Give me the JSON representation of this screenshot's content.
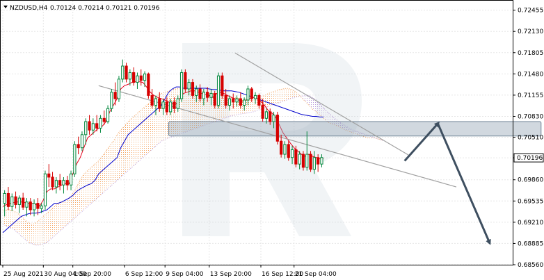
{
  "header": {
    "symbol": "NZDUSD,H4",
    "ohlc": "0.70124 0.70214 0.70121 0.70196"
  },
  "chart_data": {
    "type": "candlestick",
    "price_axis": {
      "ticks": [
        "0.72455",
        "0.72130",
        "0.71805",
        "0.71480",
        "0.71155",
        "0.70830",
        "0.70510",
        "0.70196",
        "0.69860",
        "0.69535",
        "0.69210",
        "0.68885",
        "0.68560"
      ],
      "current_price_label": "0.70196",
      "ylim": [
        0.6856,
        0.726
      ]
    },
    "time_axis": {
      "labels": [
        "25 Aug 2021",
        "30 Aug 04:00",
        "1 Sep 20:00",
        "6 Sep 12:00",
        "9 Sep 04:00",
        "13 Sep 20:00",
        "16 Sep 12:00",
        "21 Sep 04:00"
      ]
    },
    "candles": [
      {
        "o": 0.695,
        "h": 0.697,
        "l": 0.693,
        "c": 0.6965
      },
      {
        "o": 0.6965,
        "h": 0.6975,
        "l": 0.694,
        "c": 0.6945
      },
      {
        "o": 0.6945,
        "h": 0.6965,
        "l": 0.6938,
        "c": 0.696
      },
      {
        "o": 0.696,
        "h": 0.6968,
        "l": 0.6942,
        "c": 0.6948
      },
      {
        "o": 0.6948,
        "h": 0.6962,
        "l": 0.6935,
        "c": 0.6958
      },
      {
        "o": 0.6958,
        "h": 0.6966,
        "l": 0.694,
        "c": 0.6944
      },
      {
        "o": 0.6944,
        "h": 0.6958,
        "l": 0.693,
        "c": 0.6952
      },
      {
        "o": 0.6952,
        "h": 0.6958,
        "l": 0.6932,
        "c": 0.694
      },
      {
        "o": 0.694,
        "h": 0.6956,
        "l": 0.693,
        "c": 0.695
      },
      {
        "o": 0.695,
        "h": 0.6958,
        "l": 0.6932,
        "c": 0.6942
      },
      {
        "o": 0.6942,
        "h": 0.695,
        "l": 0.6935,
        "c": 0.6946
      },
      {
        "o": 0.6946,
        "h": 0.7,
        "l": 0.694,
        "c": 0.6995
      },
      {
        "o": 0.6995,
        "h": 0.701,
        "l": 0.6975,
        "c": 0.699
      },
      {
        "o": 0.699,
        "h": 0.6998,
        "l": 0.697,
        "c": 0.6975
      },
      {
        "o": 0.6975,
        "h": 0.699,
        "l": 0.6965,
        "c": 0.6985
      },
      {
        "o": 0.6985,
        "h": 0.6995,
        "l": 0.697,
        "c": 0.6978
      },
      {
        "o": 0.6978,
        "h": 0.699,
        "l": 0.6965,
        "c": 0.6985
      },
      {
        "o": 0.6985,
        "h": 0.6992,
        "l": 0.697,
        "c": 0.6978
      },
      {
        "o": 0.6978,
        "h": 0.7,
        "l": 0.697,
        "c": 0.6995
      },
      {
        "o": 0.6995,
        "h": 0.7045,
        "l": 0.699,
        "c": 0.704
      },
      {
        "o": 0.704,
        "h": 0.7052,
        "l": 0.7025,
        "c": 0.7035
      },
      {
        "o": 0.7035,
        "h": 0.706,
        "l": 0.703,
        "c": 0.7055
      },
      {
        "o": 0.7055,
        "h": 0.708,
        "l": 0.704,
        "c": 0.7075
      },
      {
        "o": 0.7075,
        "h": 0.7085,
        "l": 0.7055,
        "c": 0.7062
      },
      {
        "o": 0.7062,
        "h": 0.708,
        "l": 0.7055,
        "c": 0.7072
      },
      {
        "o": 0.7072,
        "h": 0.7085,
        "l": 0.706,
        "c": 0.7065
      },
      {
        "o": 0.7065,
        "h": 0.7085,
        "l": 0.7058,
        "c": 0.708
      },
      {
        "o": 0.708,
        "h": 0.7092,
        "l": 0.707,
        "c": 0.7075
      },
      {
        "o": 0.7075,
        "h": 0.71,
        "l": 0.7072,
        "c": 0.7095
      },
      {
        "o": 0.7095,
        "h": 0.7125,
        "l": 0.709,
        "c": 0.712
      },
      {
        "o": 0.712,
        "h": 0.7135,
        "l": 0.71,
        "c": 0.711
      },
      {
        "o": 0.711,
        "h": 0.7145,
        "l": 0.7105,
        "c": 0.714
      },
      {
        "o": 0.714,
        "h": 0.717,
        "l": 0.7135,
        "c": 0.716
      },
      {
        "o": 0.716,
        "h": 0.7165,
        "l": 0.7135,
        "c": 0.714
      },
      {
        "o": 0.714,
        "h": 0.7155,
        "l": 0.713,
        "c": 0.715
      },
      {
        "o": 0.715,
        "h": 0.7158,
        "l": 0.713,
        "c": 0.7135
      },
      {
        "o": 0.7135,
        "h": 0.715,
        "l": 0.7125,
        "c": 0.7145
      },
      {
        "o": 0.7145,
        "h": 0.7155,
        "l": 0.713,
        "c": 0.7138
      },
      {
        "o": 0.7138,
        "h": 0.7152,
        "l": 0.7128,
        "c": 0.7148
      },
      {
        "o": 0.7148,
        "h": 0.715,
        "l": 0.711,
        "c": 0.7115
      },
      {
        "o": 0.7115,
        "h": 0.7125,
        "l": 0.7095,
        "c": 0.71
      },
      {
        "o": 0.71,
        "h": 0.7115,
        "l": 0.7085,
        "c": 0.711
      },
      {
        "o": 0.711,
        "h": 0.712,
        "l": 0.709,
        "c": 0.7095
      },
      {
        "o": 0.7095,
        "h": 0.711,
        "l": 0.7085,
        "c": 0.7105
      },
      {
        "o": 0.7105,
        "h": 0.7112,
        "l": 0.7085,
        "c": 0.709
      },
      {
        "o": 0.709,
        "h": 0.711,
        "l": 0.7085,
        "c": 0.7105
      },
      {
        "o": 0.7105,
        "h": 0.7112,
        "l": 0.7088,
        "c": 0.7095
      },
      {
        "o": 0.7095,
        "h": 0.7115,
        "l": 0.709,
        "c": 0.711
      },
      {
        "o": 0.711,
        "h": 0.7155,
        "l": 0.7105,
        "c": 0.715
      },
      {
        "o": 0.715,
        "h": 0.7155,
        "l": 0.712,
        "c": 0.7125
      },
      {
        "o": 0.7125,
        "h": 0.714,
        "l": 0.7115,
        "c": 0.7135
      },
      {
        "o": 0.7135,
        "h": 0.714,
        "l": 0.711,
        "c": 0.7115
      },
      {
        "o": 0.7115,
        "h": 0.713,
        "l": 0.7105,
        "c": 0.7125
      },
      {
        "o": 0.7125,
        "h": 0.7132,
        "l": 0.7105,
        "c": 0.711
      },
      {
        "o": 0.711,
        "h": 0.7125,
        "l": 0.71,
        "c": 0.712
      },
      {
        "o": 0.712,
        "h": 0.7128,
        "l": 0.7105,
        "c": 0.7112
      },
      {
        "o": 0.7112,
        "h": 0.7125,
        "l": 0.71,
        "c": 0.7118
      },
      {
        "o": 0.7118,
        "h": 0.7122,
        "l": 0.7095,
        "c": 0.71
      },
      {
        "o": 0.71,
        "h": 0.715,
        "l": 0.7095,
        "c": 0.7145
      },
      {
        "o": 0.7145,
        "h": 0.715,
        "l": 0.711,
        "c": 0.7115
      },
      {
        "o": 0.7115,
        "h": 0.7125,
        "l": 0.7095,
        "c": 0.71
      },
      {
        "o": 0.71,
        "h": 0.7115,
        "l": 0.7092,
        "c": 0.711
      },
      {
        "o": 0.711,
        "h": 0.7118,
        "l": 0.7095,
        "c": 0.7105
      },
      {
        "o": 0.7105,
        "h": 0.7115,
        "l": 0.7098,
        "c": 0.711
      },
      {
        "o": 0.711,
        "h": 0.712,
        "l": 0.7095,
        "c": 0.71
      },
      {
        "o": 0.71,
        "h": 0.7112,
        "l": 0.7092,
        "c": 0.7108
      },
      {
        "o": 0.7108,
        "h": 0.713,
        "l": 0.71,
        "c": 0.7125
      },
      {
        "o": 0.7125,
        "h": 0.7128,
        "l": 0.7105,
        "c": 0.711
      },
      {
        "o": 0.711,
        "h": 0.712,
        "l": 0.7102,
        "c": 0.7115
      },
      {
        "o": 0.7115,
        "h": 0.7118,
        "l": 0.7095,
        "c": 0.71
      },
      {
        "o": 0.71,
        "h": 0.711,
        "l": 0.7075,
        "c": 0.708
      },
      {
        "o": 0.708,
        "h": 0.7095,
        "l": 0.7072,
        "c": 0.709
      },
      {
        "o": 0.709,
        "h": 0.7095,
        "l": 0.707,
        "c": 0.7075
      },
      {
        "o": 0.7075,
        "h": 0.709,
        "l": 0.7065,
        "c": 0.7085
      },
      {
        "o": 0.7085,
        "h": 0.709,
        "l": 0.704,
        "c": 0.7045
      },
      {
        "o": 0.7045,
        "h": 0.7055,
        "l": 0.702,
        "c": 0.7025
      },
      {
        "o": 0.7025,
        "h": 0.7045,
        "l": 0.7018,
        "c": 0.704
      },
      {
        "o": 0.704,
        "h": 0.7045,
        "l": 0.7015,
        "c": 0.702
      },
      {
        "o": 0.702,
        "h": 0.7038,
        "l": 0.701,
        "c": 0.7032
      },
      {
        "o": 0.7032,
        "h": 0.7038,
        "l": 0.7005,
        "c": 0.701
      },
      {
        "o": 0.701,
        "h": 0.703,
        "l": 0.7002,
        "c": 0.7025
      },
      {
        "o": 0.7025,
        "h": 0.703,
        "l": 0.7,
        "c": 0.7005
      },
      {
        "o": 0.7005,
        "h": 0.706,
        "l": 0.7,
        "c": 0.7025
      },
      {
        "o": 0.7025,
        "h": 0.703,
        "l": 0.6998,
        "c": 0.7002
      },
      {
        "o": 0.7002,
        "h": 0.703,
        "l": 0.6995,
        "c": 0.702
      },
      {
        "o": 0.702,
        "h": 0.7025,
        "l": 0.6998,
        "c": 0.701
      },
      {
        "o": 0.701,
        "h": 0.7025,
        "l": 0.7005,
        "c": 0.702
      }
    ],
    "tenkan": [
      0.6945,
      0.6948,
      0.695,
      0.6951,
      0.6952,
      0.6952,
      0.6951,
      0.695,
      0.695,
      0.6948,
      0.6946,
      0.6955,
      0.6968,
      0.6972,
      0.6972,
      0.6975,
      0.6978,
      0.698,
      0.698,
      0.6995,
      0.701,
      0.702,
      0.7035,
      0.705,
      0.7055,
      0.706,
      0.7065,
      0.7068,
      0.7075,
      0.709,
      0.71,
      0.711,
      0.7125,
      0.713,
      0.7132,
      0.7135,
      0.7136,
      0.7136,
      0.7135,
      0.7128,
      0.712,
      0.7115,
      0.7112,
      0.711,
      0.7108,
      0.7105,
      0.7102,
      0.7102,
      0.711,
      0.7118,
      0.712,
      0.7122,
      0.7122,
      0.712,
      0.7118,
      0.7116,
      0.7115,
      0.7112,
      0.7118,
      0.712,
      0.7118,
      0.7115,
      0.7112,
      0.711,
      0.7108,
      0.7106,
      0.7108,
      0.711,
      0.7112,
      0.711,
      0.7106,
      0.71,
      0.7092,
      0.7088,
      0.7082,
      0.707,
      0.7058,
      0.705,
      0.7042,
      0.7035,
      0.703,
      0.7025,
      0.7022,
      0.7025,
      0.7022,
      0.702,
      0.7018,
      0.7018
    ],
    "kijun": [
      0.6905,
      0.691,
      0.6915,
      0.692,
      0.6925,
      0.693,
      0.6932,
      0.6934,
      0.6935,
      0.6935,
      0.6936,
      0.6938,
      0.694,
      0.6945,
      0.695,
      0.695,
      0.6952,
      0.6955,
      0.6958,
      0.6962,
      0.6968,
      0.6972,
      0.6975,
      0.6978,
      0.698,
      0.6985,
      0.6995,
      0.7,
      0.7005,
      0.701,
      0.7015,
      0.702,
      0.7035,
      0.7045,
      0.7055,
      0.706,
      0.7065,
      0.707,
      0.7075,
      0.708,
      0.7085,
      0.709,
      0.7095,
      0.71,
      0.711,
      0.712,
      0.7125,
      0.7128,
      0.7128,
      0.7126,
      0.7126,
      0.7126,
      0.7126,
      0.7126,
      0.7126,
      0.7126,
      0.7125,
      0.7124,
      0.7124,
      0.7123,
      0.7122,
      0.7122,
      0.7122,
      0.7121,
      0.712,
      0.7118,
      0.7116,
      0.7114,
      0.7112,
      0.711,
      0.7108,
      0.7106,
      0.7104,
      0.7102,
      0.71,
      0.7098,
      0.7096,
      0.7094,
      0.7092,
      0.709,
      0.7088,
      0.7086,
      0.7085,
      0.7084,
      0.7083,
      0.7083,
      0.7082,
      0.7082
    ],
    "cloud": {
      "span_a": [
        0.6938,
        0.694,
        0.694,
        0.6938,
        0.6935,
        0.693,
        0.6925,
        0.692,
        0.6918,
        0.692,
        0.6925,
        0.693,
        0.6935,
        0.694,
        0.6945,
        0.695,
        0.6952,
        0.6955,
        0.6958,
        0.6965,
        0.6975,
        0.6985,
        0.6995,
        0.7,
        0.7005,
        0.701,
        0.7015,
        0.7022,
        0.703,
        0.7038,
        0.7045,
        0.7055,
        0.7062,
        0.7068,
        0.7075,
        0.708,
        0.7085,
        0.709,
        0.7095,
        0.71,
        0.7105,
        0.711,
        0.7115,
        0.7118,
        0.712,
        0.7122,
        0.7124,
        0.7125,
        0.7126,
        0.7126,
        0.7125,
        0.7124,
        0.7123,
        0.7122,
        0.7121,
        0.712,
        0.7119,
        0.7118,
        0.7117,
        0.7116,
        0.7115,
        0.7114,
        0.7113,
        0.7112,
        0.7111,
        0.711,
        0.711,
        0.711,
        0.711,
        0.711,
        0.7112,
        0.7115,
        0.7118,
        0.712,
        0.7122,
        0.7124,
        0.7125,
        0.7126,
        0.7125,
        0.7122,
        0.7118,
        0.7112,
        0.7106,
        0.71,
        0.7094,
        0.709,
        0.7085,
        0.708,
        0.7075,
        0.7072,
        0.707,
        0.7068,
        0.7065,
        0.7062,
        0.706,
        0.7058,
        0.7056,
        0.7054,
        0.7052,
        0.705,
        0.705,
        0.705,
        0.7048,
        0.7047
      ],
      "span_b": [
        0.6918,
        0.6915,
        0.6912,
        0.691,
        0.6905,
        0.69,
        0.6895,
        0.689,
        0.6888,
        0.6886,
        0.6886,
        0.6888,
        0.689,
        0.6895,
        0.69,
        0.6905,
        0.691,
        0.6915,
        0.692,
        0.6925,
        0.693,
        0.6935,
        0.694,
        0.6945,
        0.695,
        0.6955,
        0.696,
        0.6965,
        0.697,
        0.6975,
        0.698,
        0.6985,
        0.699,
        0.6995,
        0.7,
        0.7005,
        0.701,
        0.7015,
        0.702,
        0.7025,
        0.703,
        0.7035,
        0.704,
        0.7045,
        0.7048,
        0.705,
        0.7052,
        0.7054,
        0.7056,
        0.7058,
        0.706,
        0.7062,
        0.7064,
        0.7066,
        0.7068,
        0.707,
        0.7072,
        0.7074,
        0.7076,
        0.7078,
        0.708,
        0.7082,
        0.7084,
        0.7085,
        0.7086,
        0.7087,
        0.7088,
        0.7089,
        0.709,
        0.7092,
        0.7094,
        0.7096,
        0.7098,
        0.71,
        0.7102,
        0.7104,
        0.7106,
        0.7108,
        0.711,
        0.7112,
        0.7113,
        0.7114,
        0.7115,
        0.7115,
        0.7112,
        0.7108,
        0.7102,
        0.7096,
        0.709,
        0.7085,
        0.708,
        0.7076,
        0.7072,
        0.7068,
        0.7065,
        0.7062,
        0.706,
        0.7058,
        0.7056,
        0.7054,
        0.7052,
        0.705,
        0.7048,
        0.7046
      ]
    },
    "channel": {
      "upper": {
        "from": {
          "x": 63,
          "y": 0.718
        },
        "to": {
          "x": 110,
          "y": 0.7024
        }
      },
      "lower": {
        "from": {
          "x": 26,
          "y": 0.713
        },
        "to": {
          "x": 123,
          "y": 0.6975
        }
      }
    },
    "zone": {
      "y_top": 0.7075,
      "y_bottom": 0.7053,
      "x_from": 45,
      "x_to": 146
    },
    "forecast_path": [
      {
        "x": 109,
        "y": 0.7015
      },
      {
        "x": 118,
        "y": 0.7072
      },
      {
        "x": 132,
        "y": 0.689
      }
    ],
    "colors": {
      "bull": "#00873C",
      "bear": "#D60000",
      "tenkan": "#E8001C",
      "kijun": "#0000CC",
      "cloud_bull": "#F4A460",
      "cloud_bear": "#B89BD9",
      "channel": "#A0A0A0",
      "zone": "#9AA9B8",
      "arrow": "#3E4F60",
      "grid": "#E6E6E6",
      "price_tag_bg": "#ffffff"
    }
  }
}
